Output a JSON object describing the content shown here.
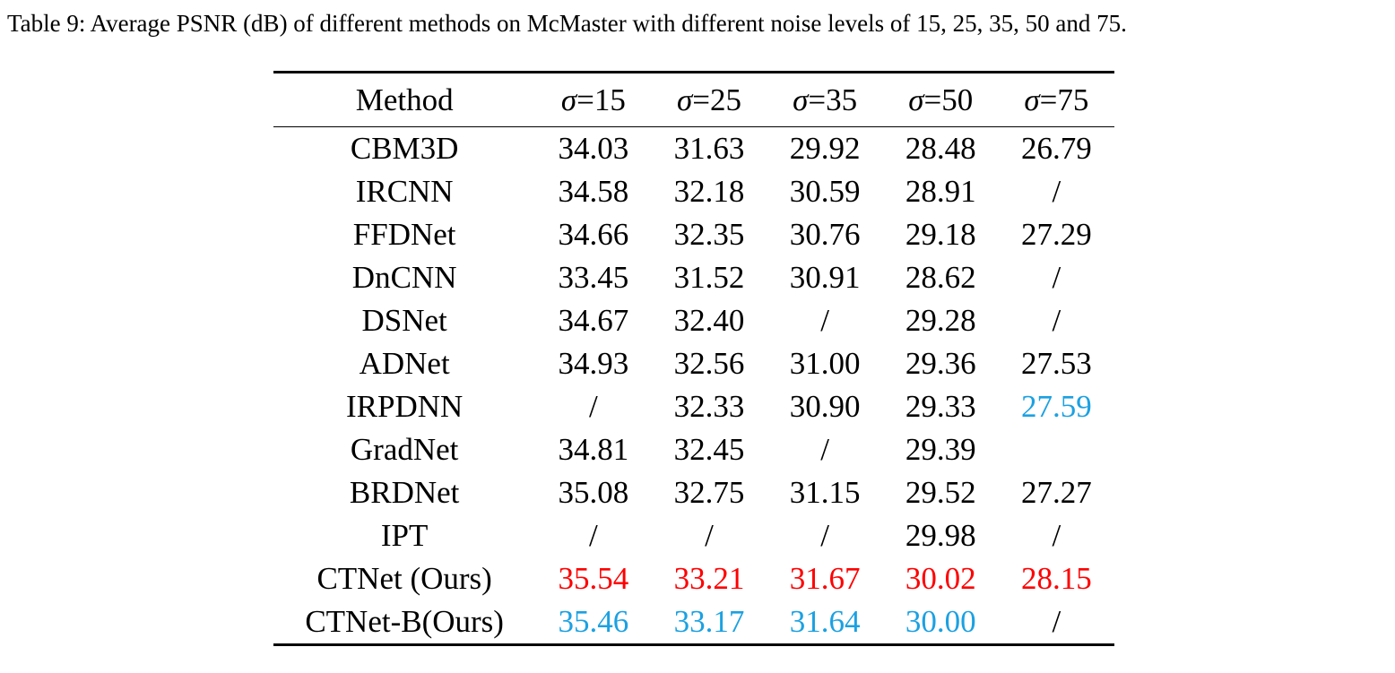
{
  "caption": "Table 9: Average PSNR (dB) of different methods on McMaster with different noise levels of 15, 25, 35, 50 and 75.",
  "table": {
    "method_header": "Method",
    "sigma_symbol": "σ",
    "levels": [
      "=15",
      "=25",
      "=35",
      "=50",
      "=75"
    ],
    "rows": [
      {
        "method": "CBM3D",
        "values": [
          "34.03",
          "31.63",
          "29.92",
          "28.48",
          "26.79"
        ]
      },
      {
        "method": "IRCNN",
        "values": [
          "34.58",
          "32.18",
          "30.59",
          "28.91",
          "/"
        ]
      },
      {
        "method": "FFDNet",
        "values": [
          "34.66",
          "32.35",
          "30.76",
          "29.18",
          "27.29"
        ]
      },
      {
        "method": "DnCNN",
        "values": [
          "33.45",
          "31.52",
          "30.91",
          "28.62",
          "/"
        ]
      },
      {
        "method": "DSNet",
        "values": [
          "34.67",
          "32.40",
          "/",
          "29.28",
          "/"
        ]
      },
      {
        "method": "ADNet",
        "values": [
          "34.93",
          "32.56",
          "31.00",
          "29.36",
          "27.53"
        ]
      },
      {
        "method": "IRPDNN",
        "values": [
          "/",
          "32.33",
          "30.90",
          "29.33",
          "27.59"
        ]
      },
      {
        "method": "GradNet",
        "values": [
          "34.81",
          "32.45",
          "/",
          "29.39",
          ""
        ]
      },
      {
        "method": "BRDNet",
        "values": [
          "35.08",
          "32.75",
          "31.15",
          "29.52",
          "27.27"
        ]
      },
      {
        "method": "IPT",
        "values": [
          "/",
          "/",
          "/",
          "29.98",
          "/"
        ]
      },
      {
        "method": "CTNet (Ours)",
        "values": [
          "35.54",
          "33.21",
          "31.67",
          "30.02",
          "28.15"
        ]
      },
      {
        "method": "CTNet-B(Ours)",
        "values": [
          "35.46",
          "33.17",
          "31.64",
          "30.00",
          "/"
        ]
      }
    ]
  },
  "colors": {
    "best": "#ff0000",
    "second_best": "#1ba1e2"
  }
}
